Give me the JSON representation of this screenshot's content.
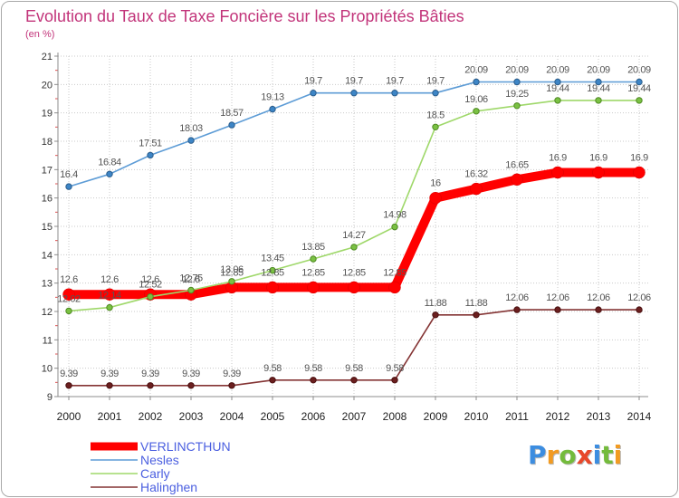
{
  "title_color": "#c2347a",
  "legend_text_color": "#4b5fe0",
  "chart_data": {
    "type": "line",
    "title": "Evolution du Taux de Taxe Foncière sur les Propriétés Bâties",
    "unit_label": "(en %)",
    "categories": [
      "2000",
      "2001",
      "2002",
      "2003",
      "2004",
      "2005",
      "2006",
      "2007",
      "2008",
      "2009",
      "2010",
      "2011",
      "2012",
      "2013",
      "2014"
    ],
    "ylim": [
      9,
      21
    ],
    "yticks": [
      9,
      10,
      11,
      12,
      13,
      14,
      15,
      16,
      17,
      18,
      19,
      20,
      21
    ],
    "grid": true,
    "legend": "bottom-left",
    "series": [
      {
        "name": "VERLINCTHUN",
        "highlight": true,
        "color": "#ff0000",
        "marker_color": "#ff0000",
        "marker_stroke": "#d40000",
        "values": [
          12.6,
          12.6,
          12.6,
          12.6,
          12.85,
          12.85,
          12.85,
          12.85,
          12.85,
          16,
          16.32,
          16.65,
          16.9,
          16.9,
          16.9
        ]
      },
      {
        "name": "Nesles",
        "highlight": false,
        "color": "#5d9cd6",
        "marker_color": "#3d85c6",
        "marker_stroke": "#2b5d8c",
        "values": [
          16.4,
          16.84,
          17.51,
          18.03,
          18.57,
          19.13,
          19.7,
          19.7,
          19.7,
          19.7,
          20.09,
          20.09,
          20.09,
          20.09,
          20.09
        ]
      },
      {
        "name": "Carly",
        "highlight": false,
        "color": "#9fd86a",
        "marker_color": "#7ac143",
        "marker_stroke": "#4f8a22",
        "values": [
          12.02,
          12.14,
          12.52,
          12.75,
          13.06,
          13.45,
          13.85,
          14.27,
          14.98,
          18.5,
          19.06,
          19.25,
          19.44,
          19.44,
          19.44
        ]
      },
      {
        "name": "Halinghen",
        "highlight": false,
        "color": "#843434",
        "marker_color": "#6b1f1f",
        "marker_stroke": "#4a1010",
        "values": [
          9.39,
          9.39,
          9.39,
          9.39,
          9.39,
          9.58,
          9.58,
          9.58,
          9.58,
          11.88,
          11.88,
          12.06,
          12.06,
          12.06,
          12.06
        ]
      }
    ]
  },
  "logo": {
    "letters": [
      "P",
      "r",
      "o",
      "x",
      "i",
      "t",
      "i"
    ],
    "colors": [
      "#3c8de0",
      "#f29b22",
      "#74bb3c",
      "#e8472a",
      "#3c8de0",
      "#74bb3c",
      "#f29b22"
    ]
  }
}
